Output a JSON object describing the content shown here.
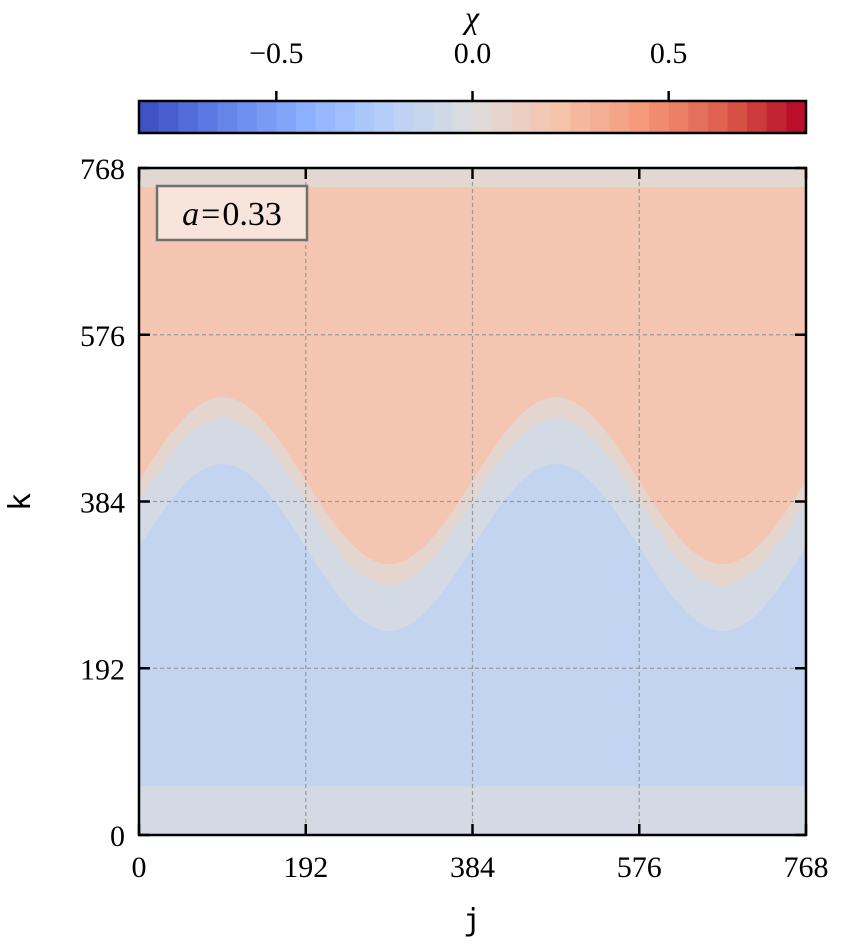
{
  "chart_data": {
    "type": "heatmap",
    "title": "",
    "xlabel": "j",
    "ylabel": "k",
    "xlim": [
      0,
      768
    ],
    "ylim": [
      0,
      768
    ],
    "x_ticks": [
      "0",
      "192",
      "384",
      "576",
      "768"
    ],
    "y_ticks": [
      "0",
      "192",
      "384",
      "576",
      "768"
    ],
    "grid": true,
    "annotation": "a = 0.33",
    "annotation_parts": {
      "var": "a",
      "eq": "=",
      "value": "0.33"
    },
    "colorbar": {
      "label": "χ",
      "range": [
        -0.85,
        0.85
      ],
      "levels": 34,
      "ticks": [
        "−0.5",
        "0.0",
        "0.5"
      ],
      "tick_values": [
        -0.5,
        0.0,
        0.5
      ],
      "colormap": "coolwarm"
    },
    "field": {
      "description_values": {
        "upper_region_value": 0.2,
        "lower_region_value": -0.15,
        "interface_band_value": 0.06,
        "interface_band2_value": -0.05,
        "top_edge_value": 0.05,
        "bottom_edge_value": -0.05
      },
      "interface": {
        "center_k": 384,
        "amplitude_k": 96,
        "wavelength_j": 384,
        "band_half_width_k": 24
      },
      "bottom_strip_k": [
        0,
        56
      ],
      "top_strip_k": [
        746,
        768
      ]
    }
  }
}
